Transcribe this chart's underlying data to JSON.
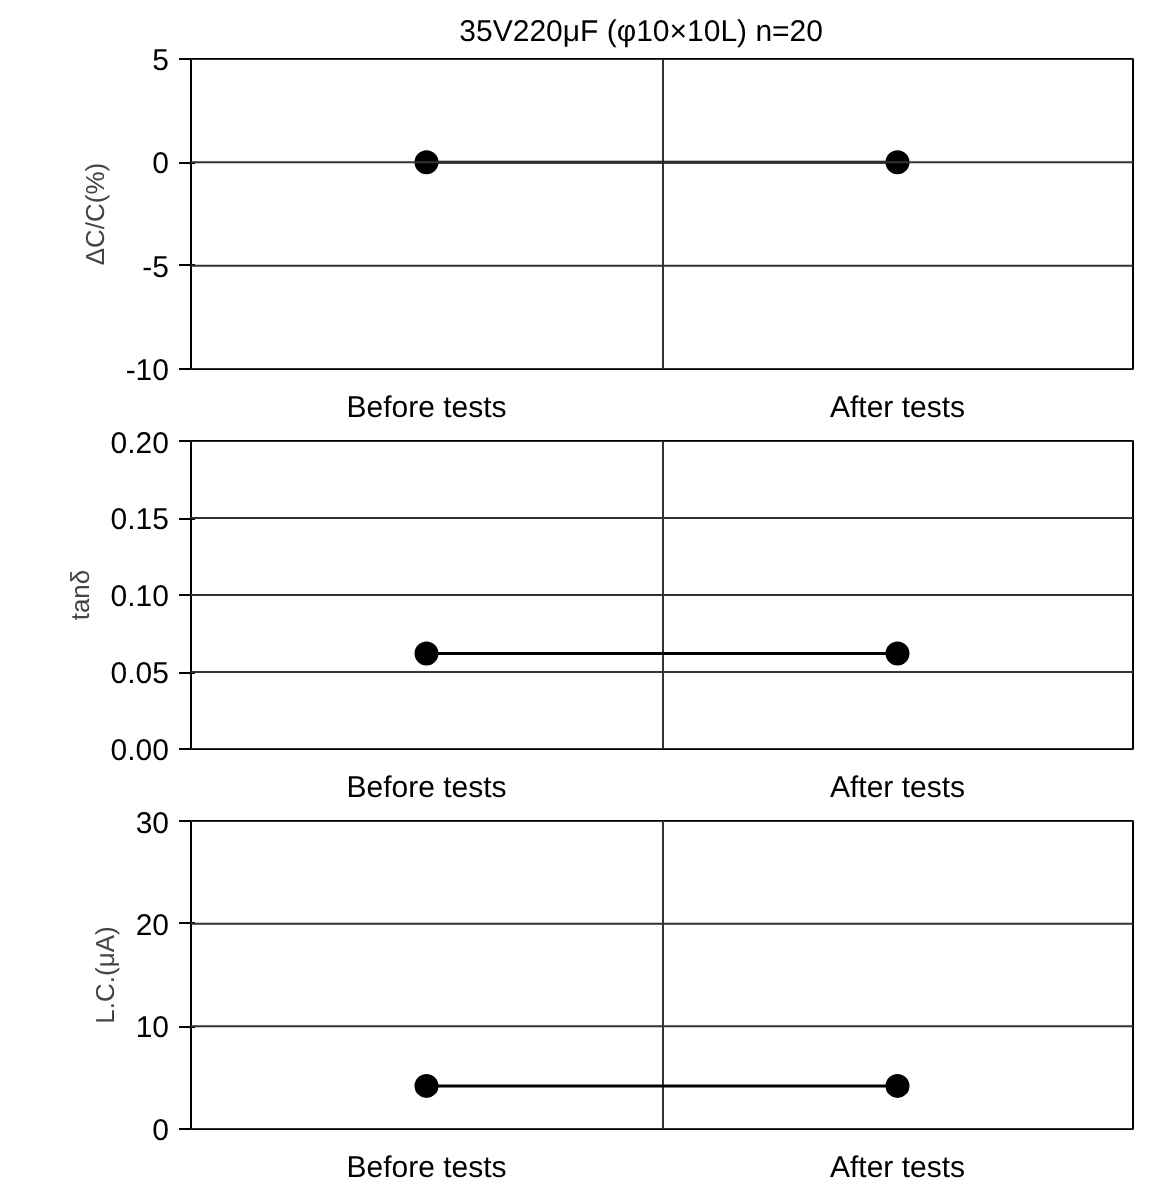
{
  "chart_data": [
    {
      "type": "line",
      "title": "35V220μF (φ10×10L)      n=20",
      "ylabel": "ΔC/C(%)",
      "categories": [
        "Before tests",
        "After tests"
      ],
      "series": [
        {
          "color": "#000000",
          "values": [
            0,
            0
          ]
        }
      ],
      "ylim": [
        -10,
        5
      ],
      "yticks": [
        -10,
        -5,
        0,
        5
      ],
      "grid": true,
      "marker": "circle",
      "line_style": "solid"
    },
    {
      "type": "line",
      "ylabel": "tanδ",
      "categories": [
        "Before tests",
        "After tests"
      ],
      "series": [
        {
          "color": "#000000",
          "values": [
            0.062,
            0.062
          ]
        }
      ],
      "ylim": [
        0,
        0.2
      ],
      "yticks": [
        {
          "value": 0,
          "label": "0.00"
        },
        {
          "value": 0.05,
          "label": "0.05"
        },
        {
          "value": 0.1,
          "label": "0.10"
        },
        {
          "value": 0.15,
          "label": "0.15"
        },
        {
          "value": 0.2,
          "label": "0.20"
        }
      ],
      "grid": true,
      "marker": "circle",
      "line_style": "solid"
    },
    {
      "type": "line",
      "ylabel": "L.C.(μA)",
      "categories": [
        "Before tests",
        "After tests"
      ],
      "series": [
        {
          "color": "#000000",
          "values": [
            4.2,
            4.2
          ]
        }
      ],
      "ylim": [
        0,
        30
      ],
      "yticks": [
        0,
        10,
        20,
        30
      ],
      "grid": true,
      "marker": "circle",
      "line_style": "solid"
    }
  ]
}
